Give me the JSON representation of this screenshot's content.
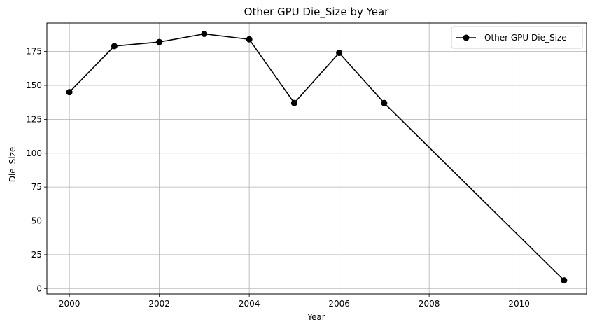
{
  "chart_data": {
    "type": "line",
    "title": "Other GPU Die_Size by Year",
    "xlabel": "Year",
    "ylabel": "Die_Size",
    "xlim": [
      1999.5,
      2011.5
    ],
    "ylim": [
      -4,
      196
    ],
    "xticks": [
      2000,
      2002,
      2004,
      2006,
      2008,
      2010
    ],
    "yticks": [
      0,
      25,
      50,
      75,
      100,
      125,
      150,
      175
    ],
    "grid": true,
    "legend_position": "top-right",
    "colors": {
      "line": "#000000",
      "grid": "#b0b0b0",
      "axes": "#000000"
    },
    "series": [
      {
        "name": "Other GPU Die_Size",
        "x": [
          2000,
          2001,
          2002,
          2003,
          2004,
          2005,
          2006,
          2007,
          2011
        ],
        "y": [
          145,
          179,
          182,
          188,
          184,
          137,
          174,
          137,
          6
        ]
      }
    ]
  }
}
